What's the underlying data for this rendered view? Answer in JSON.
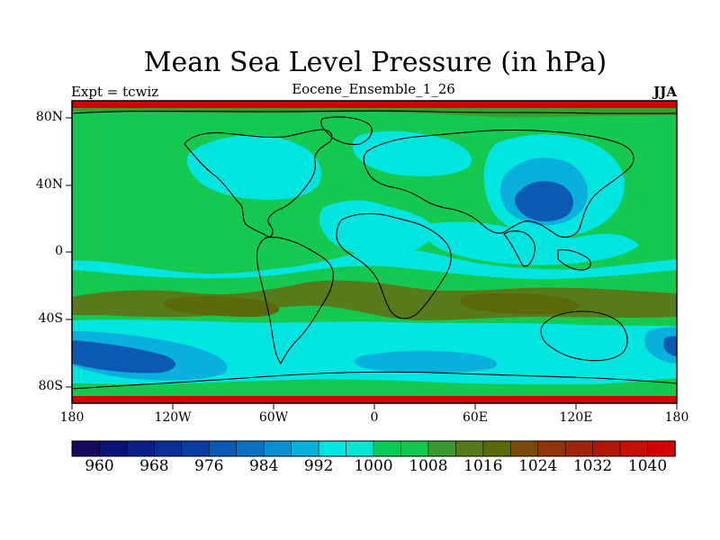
{
  "chart_title": "Mean Sea Level Pressure (in hPa)",
  "left_label": "Expt = tcwiz",
  "center_label": "Eocene_Ensemble_1_26",
  "right_label": "JJA",
  "lat_labels": [
    "80N",
    "40N",
    "0",
    "40S",
    "80S"
  ],
  "lon_labels": [
    "180",
    "120W",
    "60W",
    "0",
    "60E",
    "120E",
    "180"
  ],
  "colorbar": {
    "colors": [
      "#1a0a5e",
      "#0a1477",
      "#0a1f8a",
      "#0a2d96",
      "#0a3ca3",
      "#0a5ab4",
      "#0a72c3",
      "#0a8fd0",
      "#09b0dc",
      "#00e5e0",
      "#00e8d2",
      "#0acb5a",
      "#15c850",
      "#3d9a2e",
      "#577a1a",
      "#5a6a0a",
      "#7a4a0a",
      "#8f3409",
      "#9e2509",
      "#b01507",
      "#c41006",
      "#d40000"
    ],
    "tick_labels": [
      "960",
      "968",
      "976",
      "984",
      "992",
      "1000",
      "1008",
      "1016",
      "1024",
      "1032",
      "1040"
    ]
  },
  "chart_data": {
    "type": "heatmap",
    "title": "Mean Sea Level Pressure (in hPa)",
    "subtitle": "Eocene_Ensemble_1_26",
    "season": "JJA",
    "units": "hPa",
    "x_range": [
      -180,
      180
    ],
    "y_range": [
      -90,
      90
    ],
    "color_levels": [
      960,
      964,
      968,
      972,
      976,
      980,
      984,
      988,
      992,
      996,
      1000,
      1004,
      1008,
      1012,
      1016,
      1020,
      1024,
      1028,
      1032,
      1036,
      1040
    ],
    "regions": [
      {
        "name": "southern-high-pressure-belt",
        "lat": [
          -45,
          -25
        ],
        "value": 1016
      },
      {
        "name": "southern-ocean-low",
        "lat": [
          -75,
          -50
        ],
        "value": 988
      },
      {
        "name": "asian-monsoon-low",
        "lon": [
          80,
          115
        ],
        "lat": [
          25,
          45
        ],
        "value": 992
      },
      {
        "name": "polar-edge-high",
        "lat": [
          85,
          90
        ],
        "value": 1040
      }
    ]
  }
}
